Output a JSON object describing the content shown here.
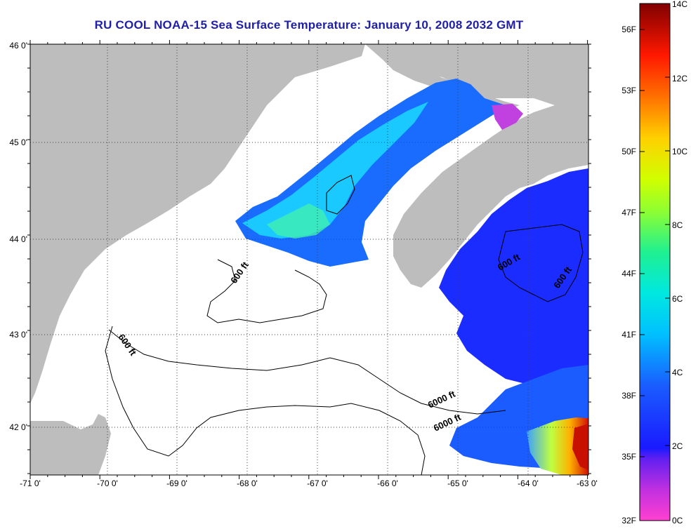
{
  "title": "RU COOL  NOAA-15  Sea Surface Temperature:  January 10, 2008 2032 GMT",
  "axes": {
    "lon_ticks": [
      "-71 0'",
      "-70 0'",
      "-69 0'",
      "-68 0'",
      "-67 0'",
      "-66 0'",
      "-65 0'",
      "-64 0'",
      "-63 0'"
    ],
    "lat_ticks": [
      "46 0'",
      "45 0'",
      "44 0'",
      "43 0'",
      "42 0'"
    ]
  },
  "contour_labels": [
    "600 ft",
    "600 ft",
    "600 ft",
    "600 ft",
    "6000 ft"
  ],
  "colorbar": {
    "fahrenheit": [
      "56F",
      "53F",
      "50F",
      "47F",
      "44F",
      "41F",
      "38F",
      "35F",
      "32F"
    ],
    "celsius": [
      "14C",
      "12C",
      "10C",
      "8C",
      "6C",
      "4C",
      "2C",
      "0C"
    ]
  },
  "colors": {
    "land": "#bdbdbd",
    "no_data": "#ffffff",
    "title": "#1f1fa8"
  }
}
